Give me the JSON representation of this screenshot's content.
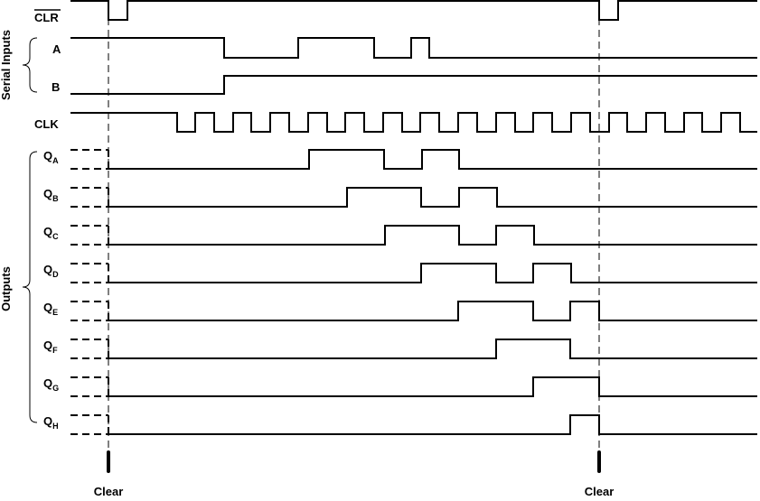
{
  "groups": {
    "serial_inputs": "Serial Inputs",
    "outputs": "Outputs"
  },
  "signals": {
    "clr": "CLR",
    "a": "A",
    "b": "B",
    "clk": "CLK"
  },
  "outputs": [
    {
      "base": "Q",
      "sub": "A"
    },
    {
      "base": "Q",
      "sub": "B"
    },
    {
      "base": "Q",
      "sub": "C"
    },
    {
      "base": "Q",
      "sub": "D"
    },
    {
      "base": "Q",
      "sub": "E"
    },
    {
      "base": "Q",
      "sub": "F"
    },
    {
      "base": "Q",
      "sub": "G"
    },
    {
      "base": "Q",
      "sub": "H"
    }
  ],
  "markers": {
    "clear_1": "Clear",
    "clear_2": "Clear"
  }
}
